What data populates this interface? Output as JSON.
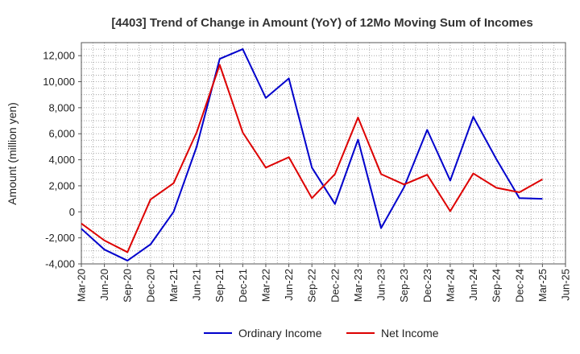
{
  "chart_data": {
    "type": "line",
    "title": "[4403]  Trend of Change in Amount (YoY) of 12Mo Moving Sum of Incomes",
    "xlabel": "",
    "ylabel": "Amount (million yen)",
    "ylim": [
      -4000,
      13000
    ],
    "yticks": [
      -4000,
      -2000,
      0,
      2000,
      4000,
      6000,
      8000,
      10000,
      12000
    ],
    "ytick_labels": [
      "-4,000",
      "-2,000",
      "0",
      "2,000",
      "4,000",
      "6,000",
      "8,000",
      "10,000",
      "12,000"
    ],
    "categories": [
      "Mar-20",
      "Jun-20",
      "Sep-20",
      "Dec-20",
      "Mar-21",
      "Jun-21",
      "Sep-21",
      "Dec-21",
      "Mar-22",
      "Jun-22",
      "Sep-22",
      "Dec-22",
      "Mar-23",
      "Jun-23",
      "Sep-23",
      "Dec-23",
      "Mar-24",
      "Jun-24",
      "Sep-24",
      "Dec-24",
      "Mar-25",
      "Jun-25"
    ],
    "grid": true,
    "legend_position": "bottom",
    "series": [
      {
        "name": "Ordinary Income",
        "color": "#0000cc",
        "values": [
          -1300,
          -2900,
          -3750,
          -2500,
          0,
          5000,
          11750,
          12500,
          8750,
          10250,
          3400,
          600,
          5550,
          -1250,
          1900,
          6300,
          2400,
          7300,
          4050,
          1050,
          1000,
          null
        ]
      },
      {
        "name": "Net Income",
        "color": "#dd0000",
        "values": [
          -900,
          -2200,
          -3100,
          950,
          2200,
          6100,
          11300,
          6100,
          3400,
          4200,
          1050,
          2900,
          7250,
          2900,
          2100,
          2850,
          50,
          2950,
          1850,
          1500,
          2500,
          null
        ]
      }
    ]
  }
}
